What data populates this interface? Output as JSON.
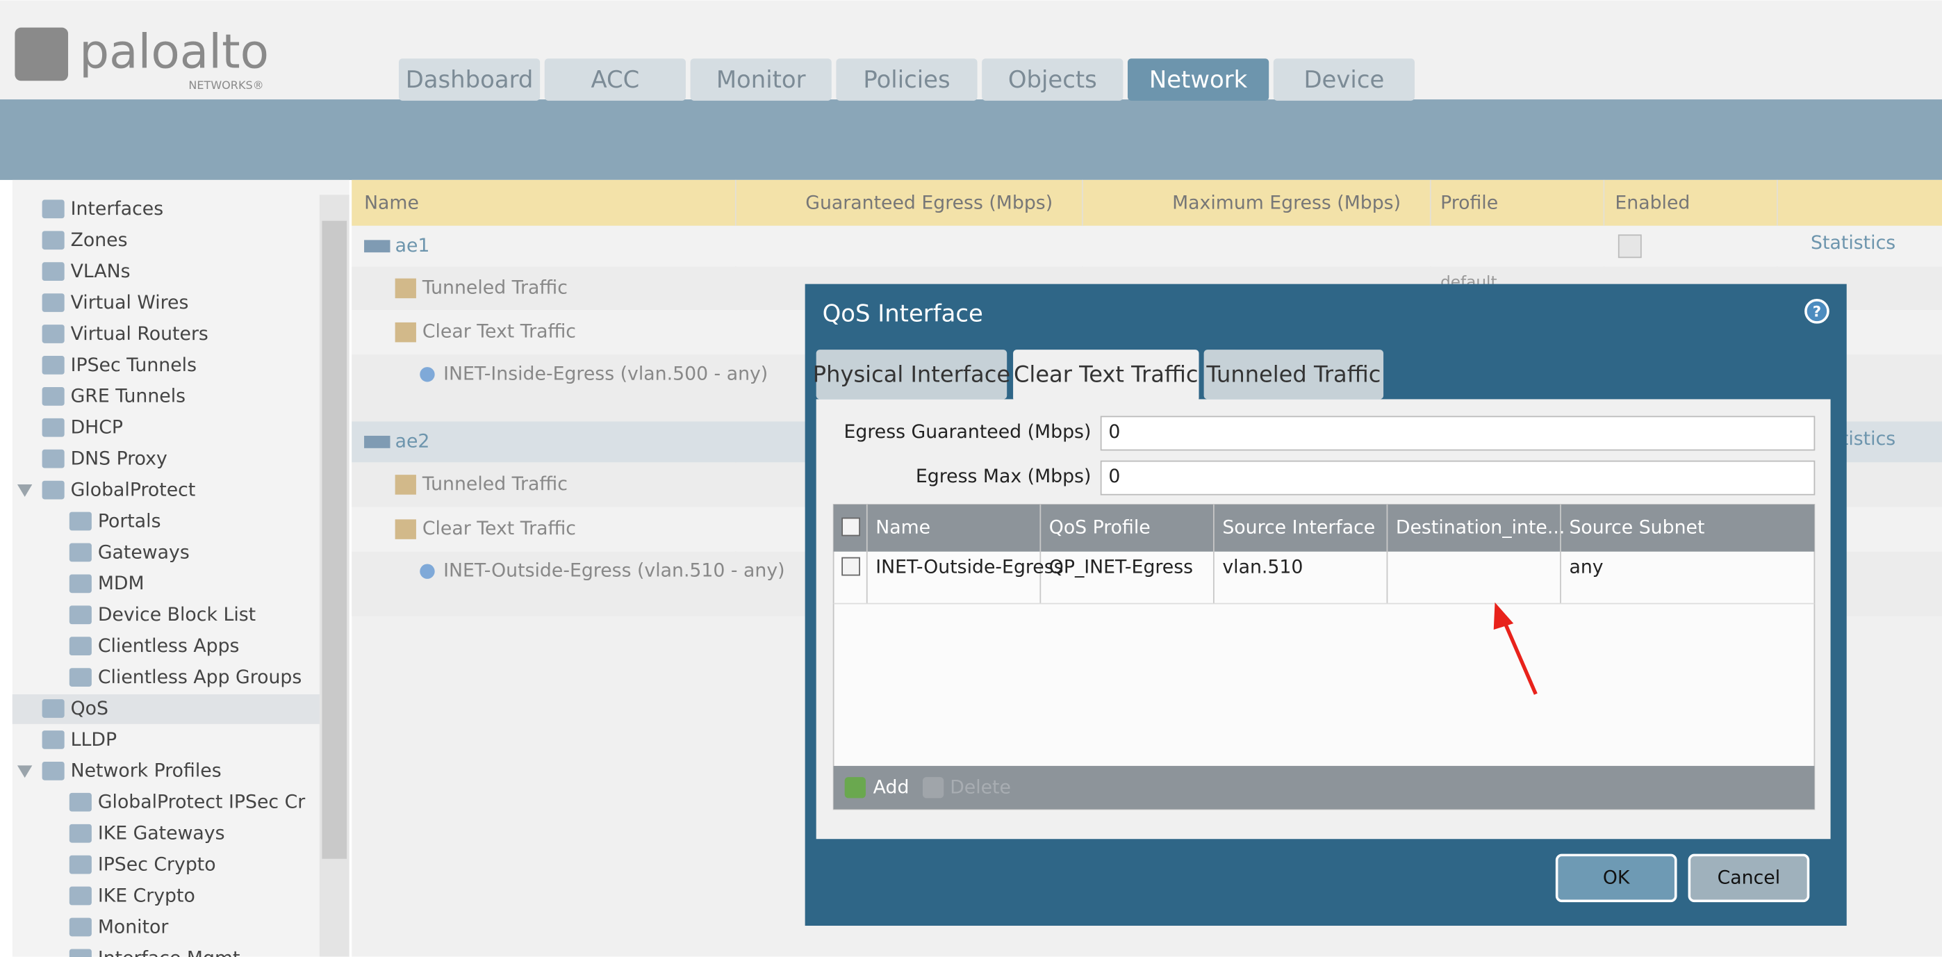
{
  "logo": {
    "name": "paloalto",
    "sub": "NETWORKS®"
  },
  "nav": {
    "tabs": [
      "Dashboard",
      "ACC",
      "Monitor",
      "Policies",
      "Objects",
      "Network",
      "Device"
    ],
    "active": 5
  },
  "sidebar": {
    "selected": 16,
    "items": [
      {
        "label": "Interfaces",
        "level": 0
      },
      {
        "label": "Zones",
        "level": 0
      },
      {
        "label": "VLANs",
        "level": 0
      },
      {
        "label": "Virtual Wires",
        "level": 0
      },
      {
        "label": "Virtual Routers",
        "level": 0
      },
      {
        "label": "IPSec Tunnels",
        "level": 0
      },
      {
        "label": "GRE Tunnels",
        "level": 0
      },
      {
        "label": "DHCP",
        "level": 0
      },
      {
        "label": "DNS Proxy",
        "level": 0
      },
      {
        "label": "GlobalProtect",
        "level": 0,
        "expanded": true
      },
      {
        "label": "Portals",
        "level": 1
      },
      {
        "label": "Gateways",
        "level": 1
      },
      {
        "label": "MDM",
        "level": 1
      },
      {
        "label": "Device Block List",
        "level": 1
      },
      {
        "label": "Clientless Apps",
        "level": 1
      },
      {
        "label": "Clientless App Groups",
        "level": 1
      },
      {
        "label": "QoS",
        "level": 0
      },
      {
        "label": "LLDP",
        "level": 0
      },
      {
        "label": "Network Profiles",
        "level": 0,
        "expanded": true
      },
      {
        "label": "GlobalProtect IPSec Cr",
        "level": 1
      },
      {
        "label": "IKE Gateways",
        "level": 1
      },
      {
        "label": "IPSec Crypto",
        "level": 1
      },
      {
        "label": "IKE Crypto",
        "level": 1
      },
      {
        "label": "Monitor",
        "level": 1
      },
      {
        "label": "Interface Mgmt",
        "level": 1
      }
    ]
  },
  "table": {
    "headers": [
      "Name",
      "Guaranteed Egress (Mbps)",
      "Maximum Egress (Mbps)",
      "Profile",
      "Enabled"
    ],
    "selected": 4,
    "rows": [
      {
        "label": "ae1",
        "level": 0,
        "enabled": true,
        "link": "Statistics"
      },
      {
        "label": "Tunneled Traffic",
        "level": 1,
        "profile": "default"
      },
      {
        "label": "Clear Text Traffic",
        "level": 1
      },
      {
        "label": "INET-Inside-Egress (vlan.500 - any)",
        "level": 2
      },
      {
        "label": "ae2",
        "level": 0,
        "link": "Statistics"
      },
      {
        "label": "Tunneled Traffic",
        "level": 1
      },
      {
        "label": "Clear Text Traffic",
        "level": 1
      },
      {
        "label": "INET-Outside-Egress (vlan.510 - any)",
        "level": 2
      }
    ]
  },
  "dialog": {
    "title": "QoS Interface",
    "help": "?",
    "tabs": [
      "Physical Interface",
      "Clear Text Traffic",
      "Tunneled Traffic"
    ],
    "active_tab": 1,
    "fields": [
      {
        "label": "Egress Guaranteed (Mbps)",
        "value": "0"
      },
      {
        "label": "Egress Max (Mbps)",
        "value": "0"
      }
    ],
    "grid": {
      "headers": [
        "Name",
        "QoS Profile",
        "Source Interface",
        "Destination_inte...",
        "Source Subnet"
      ],
      "rows": [
        [
          "INET-Outside-Egress",
          "QP_INET-Egress",
          "vlan.510",
          null,
          "any"
        ]
      ]
    },
    "toolbar": [
      "Add",
      "Delete"
    ],
    "buttons": [
      "OK",
      "Cancel"
    ]
  }
}
